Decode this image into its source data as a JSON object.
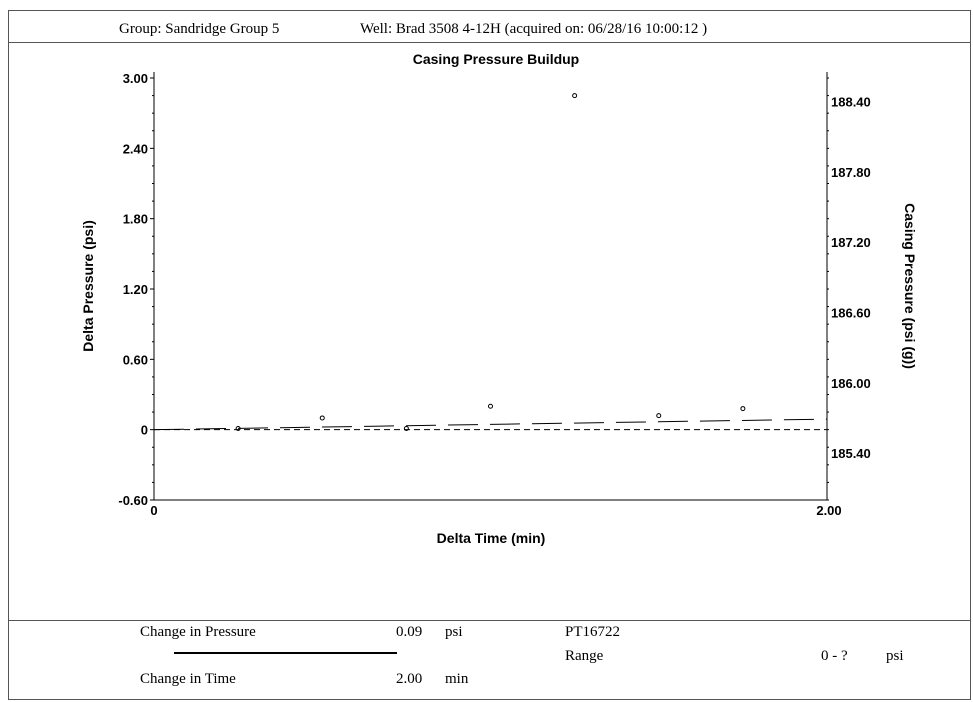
{
  "header": {
    "group": "Group: Sandridge Group 5",
    "well": "Well: Brad 3508 4-12H (acquired on: 06/28/16 10:00:12 )"
  },
  "chart_data": {
    "type": "scatter",
    "title": "Casing Pressure Buildup",
    "xlabel": "Delta Time (min)",
    "ylabel": "Delta Pressure (psi)",
    "y2label": "Casing Pressure (psi (g))",
    "xlim": [
      0,
      2.0
    ],
    "ylim": [
      -0.6,
      3.0
    ],
    "y2lim": [
      185.0,
      188.6
    ],
    "x_ticks": [
      "0",
      "2.00"
    ],
    "y_ticks": [
      {
        "v": -0.6,
        "label": "-0.60"
      },
      {
        "v": 0,
        "label": "0"
      },
      {
        "v": 0.6,
        "label": "0.60"
      },
      {
        "v": 1.2,
        "label": "1.20"
      },
      {
        "v": 1.8,
        "label": "1.80"
      },
      {
        "v": 2.4,
        "label": "2.40"
      },
      {
        "v": 3.0,
        "label": "3.00"
      }
    ],
    "y2_ticks": [
      {
        "v": 185.4,
        "label": "185.40"
      },
      {
        "v": 186.0,
        "label": "186.00"
      },
      {
        "v": 186.6,
        "label": "186.60"
      },
      {
        "v": 187.2,
        "label": "187.20"
      },
      {
        "v": 187.8,
        "label": "187.80"
      },
      {
        "v": 188.4,
        "label": "188.40"
      }
    ],
    "grid": false,
    "points": {
      "x": [
        0.25,
        0.5,
        0.75,
        1.0,
        1.25,
        1.5,
        1.75
      ],
      "y": [
        0.01,
        0.1,
        0.01,
        0.2,
        2.85,
        0.12,
        0.18
      ]
    },
    "trend_line": {
      "style": "long-dash",
      "x": [
        0,
        2.0
      ],
      "y": [
        0,
        0.09
      ]
    },
    "baseline": {
      "style": "short-dash",
      "y": 0
    }
  },
  "footer": {
    "change_pressure_label": "Change in Pressure",
    "change_pressure_value": "0.09",
    "change_pressure_unit": "psi",
    "change_time_label": "Change in Time",
    "change_time_value": "2.00",
    "change_time_unit": "min",
    "gauge_id": "PT16722",
    "range_label": "Range",
    "range_value": "0 - ?",
    "range_unit": "psi"
  }
}
